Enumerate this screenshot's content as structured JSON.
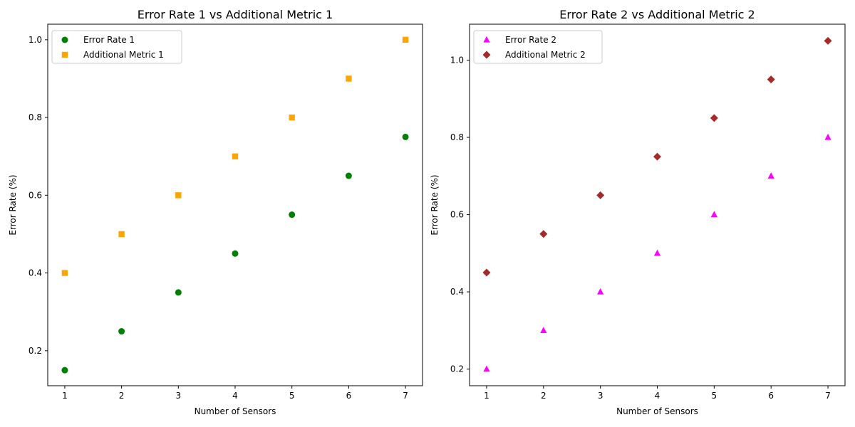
{
  "chart_data": [
    {
      "type": "scatter",
      "title": "Error Rate 1 vs Additional Metric 1",
      "xlabel": "Number of Sensors",
      "ylabel": "Error Rate (%)",
      "xlim": [
        0.7,
        7.3
      ],
      "ylim": [
        0.11,
        1.04
      ],
      "xticks": [
        "1",
        "2",
        "3",
        "4",
        "5",
        "6",
        "7"
      ],
      "yticks": [
        "0.2",
        "0.4",
        "0.6",
        "0.8",
        "1.0"
      ],
      "grid": false,
      "legend_position": "top-left",
      "series": [
        {
          "name": "Error Rate 1",
          "marker": "circle",
          "color": "#008000",
          "x": [
            1,
            2,
            3,
            4,
            5,
            6,
            7
          ],
          "y": [
            0.15,
            0.25,
            0.35,
            0.45,
            0.55,
            0.65,
            0.75
          ]
        },
        {
          "name": "Additional Metric 1",
          "marker": "square",
          "color": "#ffa500",
          "x": [
            1,
            2,
            3,
            4,
            5,
            6,
            7
          ],
          "y": [
            0.4,
            0.5,
            0.6,
            0.7,
            0.8,
            0.9,
            1.0
          ]
        }
      ]
    },
    {
      "type": "scatter",
      "title": "Error Rate 2 vs Additional Metric 2",
      "xlabel": "Number of Sensors",
      "ylabel": "Error Rate (%)",
      "xlim": [
        0.7,
        7.3
      ],
      "ylim": [
        0.157,
        1.093
      ],
      "xticks": [
        "1",
        "2",
        "3",
        "4",
        "5",
        "6",
        "7"
      ],
      "yticks": [
        "0.2",
        "0.4",
        "0.6",
        "0.8",
        "1.0"
      ],
      "grid": false,
      "legend_position": "top-left",
      "series": [
        {
          "name": "Error Rate 2",
          "marker": "triangle",
          "color": "#ff00ff",
          "x": [
            1,
            2,
            3,
            4,
            5,
            6,
            7
          ],
          "y": [
            0.2,
            0.3,
            0.4,
            0.5,
            0.6,
            0.7,
            0.8
          ]
        },
        {
          "name": "Additional Metric 2",
          "marker": "diamond",
          "color": "#a52a2a",
          "x": [
            1,
            2,
            3,
            4,
            5,
            6,
            7
          ],
          "y": [
            0.45,
            0.55,
            0.65,
            0.75,
            0.85,
            0.95,
            1.05
          ]
        }
      ]
    }
  ]
}
